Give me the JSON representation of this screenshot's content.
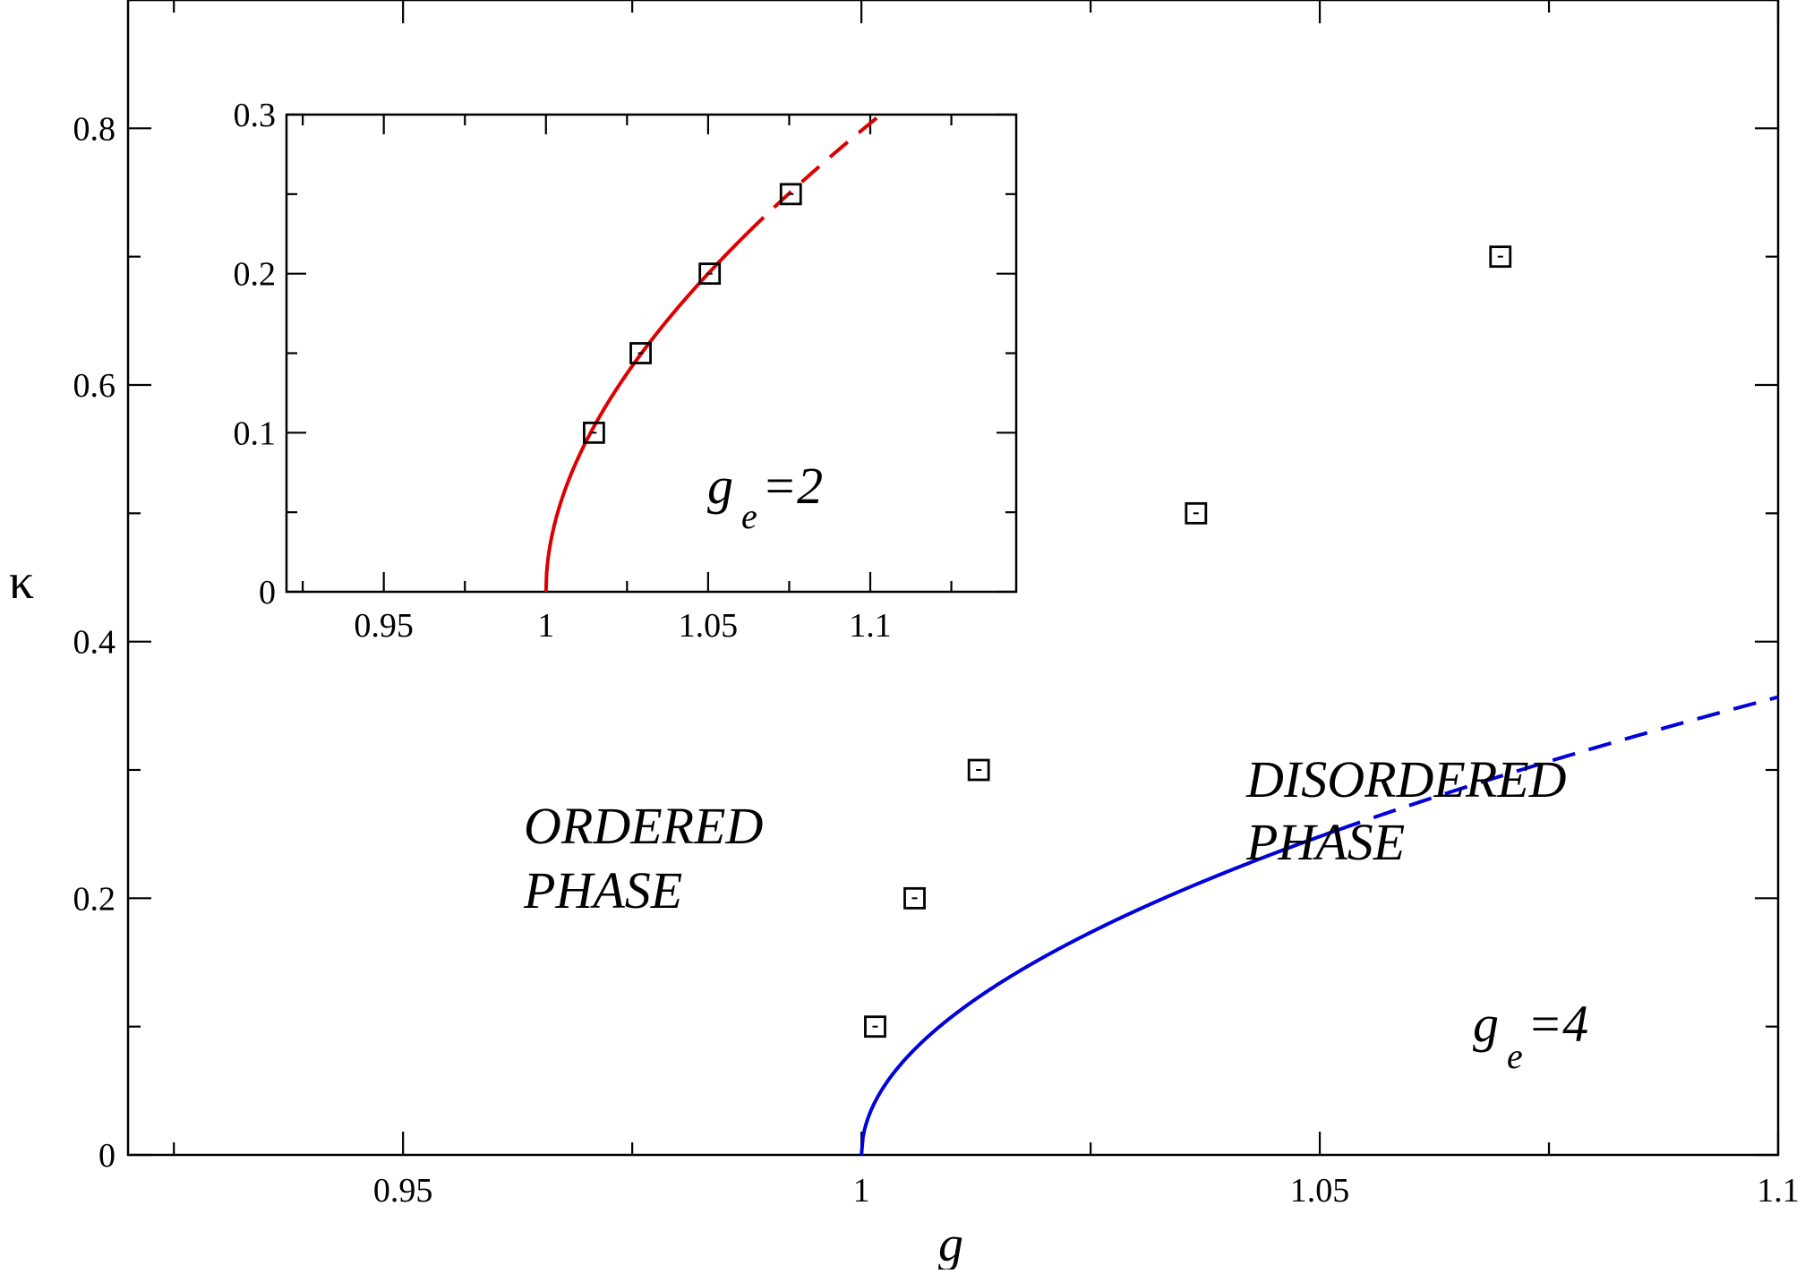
{
  "chart_data": [
    {
      "type": "line",
      "xlabel": "g",
      "ylabel": "κ",
      "xlim": [
        0.92,
        1.1
      ],
      "ylim": [
        0,
        0.9
      ],
      "x_ticks": [
        "0.95",
        "1",
        "1.05",
        "1.1"
      ],
      "x_tick_values": [
        0.95,
        1.0,
        1.05,
        1.1
      ],
      "y_ticks": [
        "0",
        "0.2",
        "0.4",
        "0.6",
        "0.8"
      ],
      "y_tick_values": [
        0,
        0.2,
        0.4,
        0.6,
        0.8
      ],
      "grid": false,
      "color": "#0000dd",
      "series": [
        {
          "kind": "fit-curve",
          "solid_range": [
            1.0,
            1.052
          ],
          "dashed_range": [
            1.052,
            1.1
          ],
          "formula": "kappa = 1.065*(g-1)^0.5 + 0.2*(g-1)",
          "style": "solid then dashed"
        },
        {
          "kind": "data-points",
          "marker": "open-square",
          "x": [
            1.0015,
            1.0058,
            1.0128,
            1.0365,
            1.0697
          ],
          "y": [
            0.1,
            0.2,
            0.3,
            0.5,
            0.7
          ]
        }
      ],
      "annotations": [
        {
          "text": "ORDERED",
          "line2": "PHASE"
        },
        {
          "text": "DISORDERED",
          "line2": "PHASE"
        },
        {
          "text_main": "g",
          "sub": "e",
          "tail": "=4"
        }
      ]
    },
    {
      "type": "line",
      "inset": true,
      "xlim": [
        0.92,
        1.145
      ],
      "ylim": [
        0,
        0.3
      ],
      "x_ticks": [
        "0.95",
        "1",
        "1.05",
        "1.1"
      ],
      "x_tick_values": [
        0.95,
        1.0,
        1.05,
        1.1
      ],
      "y_ticks": [
        "0",
        "0.1",
        "0.2",
        "0.3"
      ],
      "y_tick_values": [
        0,
        0.1,
        0.2,
        0.3
      ],
      "grid": false,
      "color": "#dd0000",
      "series": [
        {
          "kind": "fit-curve",
          "solid_range": [
            1.0,
            1.062
          ],
          "dashed_range": [
            1.062,
            1.108
          ],
          "formula": "kappa = 0.805*(g-1)^0.5 + 0.4*(g-1)",
          "style": "solid then dashed"
        },
        {
          "kind": "data-points",
          "marker": "open-square",
          "x": [
            1.0148,
            1.0292,
            1.0505,
            1.0755
          ],
          "y": [
            0.1,
            0.15,
            0.2,
            0.25
          ]
        }
      ],
      "annotations": [
        {
          "text_main": "g",
          "sub": "e",
          "tail": "=2"
        }
      ]
    }
  ]
}
